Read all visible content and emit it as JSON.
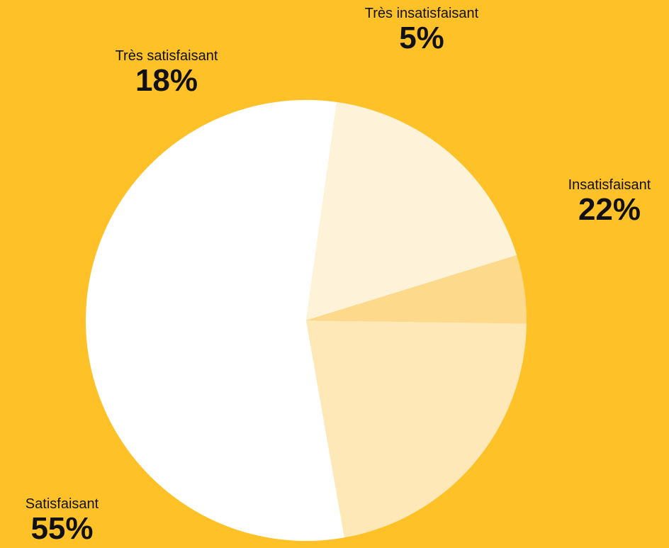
{
  "chart_data": {
    "type": "pie",
    "start_angle_deg": 8,
    "direction": "clockwise",
    "colors": {
      "background": "#FEC228",
      "slices": [
        "#FEF2D9",
        "#FDD98B",
        "#FEE8B8",
        "#FFFFFF"
      ]
    },
    "slices": [
      {
        "label": "Très satisfaisant",
        "value": 18,
        "display": "18%"
      },
      {
        "label": "Très insatisfaisant",
        "value": 5,
        "display": "5%"
      },
      {
        "label": "Insatisfaisant",
        "value": 22,
        "display": "22%"
      },
      {
        "label": "Satisfaisant",
        "value": 55,
        "display": "55%"
      }
    ]
  }
}
